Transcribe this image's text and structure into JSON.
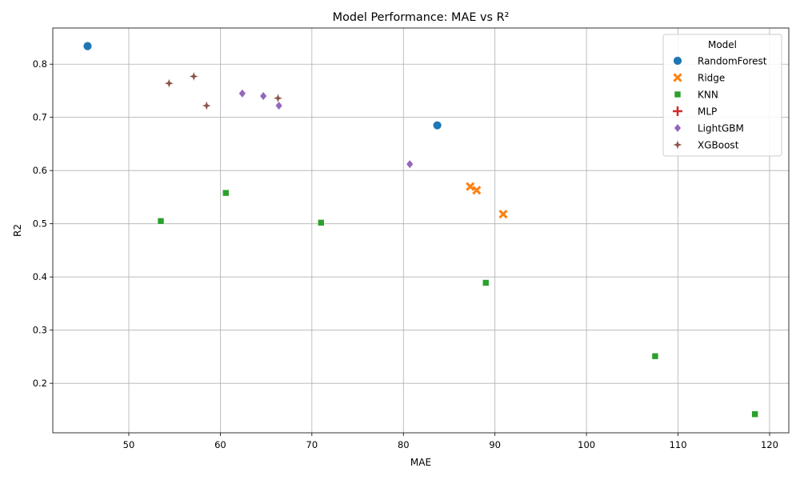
{
  "chart_data": {
    "type": "scatter",
    "title": "Model Performance: MAE vs R²",
    "xlabel": "MAE",
    "ylabel": "R2",
    "xlim": [
      41.7,
      122.1
    ],
    "ylim": [
      0.107,
      0.868
    ],
    "xticks": [
      50,
      60,
      70,
      80,
      90,
      100,
      110,
      120
    ],
    "yticks": [
      0.2,
      0.3,
      0.4,
      0.5,
      0.6,
      0.7,
      0.8
    ],
    "grid": true,
    "legend_title": "Model",
    "legend_position": "top-right",
    "series": [
      {
        "name": "RandomForest",
        "marker": "circle",
        "color": "#1f77b4",
        "points": [
          [
            45.5,
            0.834
          ],
          [
            83.7,
            0.685
          ]
        ]
      },
      {
        "name": "Ridge",
        "marker": "x",
        "color": "#ff7f0e",
        "points": [
          [
            87.3,
            0.57
          ],
          [
            88.0,
            0.563
          ],
          [
            90.9,
            0.518
          ]
        ]
      },
      {
        "name": "KNN",
        "marker": "square",
        "color": "#2ca02c",
        "points": [
          [
            53.5,
            0.505
          ],
          [
            60.6,
            0.558
          ],
          [
            71.0,
            0.502
          ],
          [
            89.0,
            0.389
          ],
          [
            107.5,
            0.251
          ],
          [
            118.4,
            0.142
          ]
        ]
      },
      {
        "name": "MLP",
        "marker": "plus",
        "color": "#d62728",
        "points": []
      },
      {
        "name": "LightGBM",
        "marker": "diamond",
        "color": "#9467bd",
        "points": [
          [
            62.4,
            0.745
          ],
          [
            64.7,
            0.74
          ],
          [
            66.4,
            0.722
          ],
          [
            80.7,
            0.612
          ]
        ]
      },
      {
        "name": "XGBoost",
        "marker": "star4",
        "color": "#8c564b",
        "points": [
          [
            54.4,
            0.764
          ],
          [
            57.1,
            0.777
          ],
          [
            58.5,
            0.722
          ],
          [
            66.3,
            0.736
          ]
        ]
      }
    ]
  }
}
